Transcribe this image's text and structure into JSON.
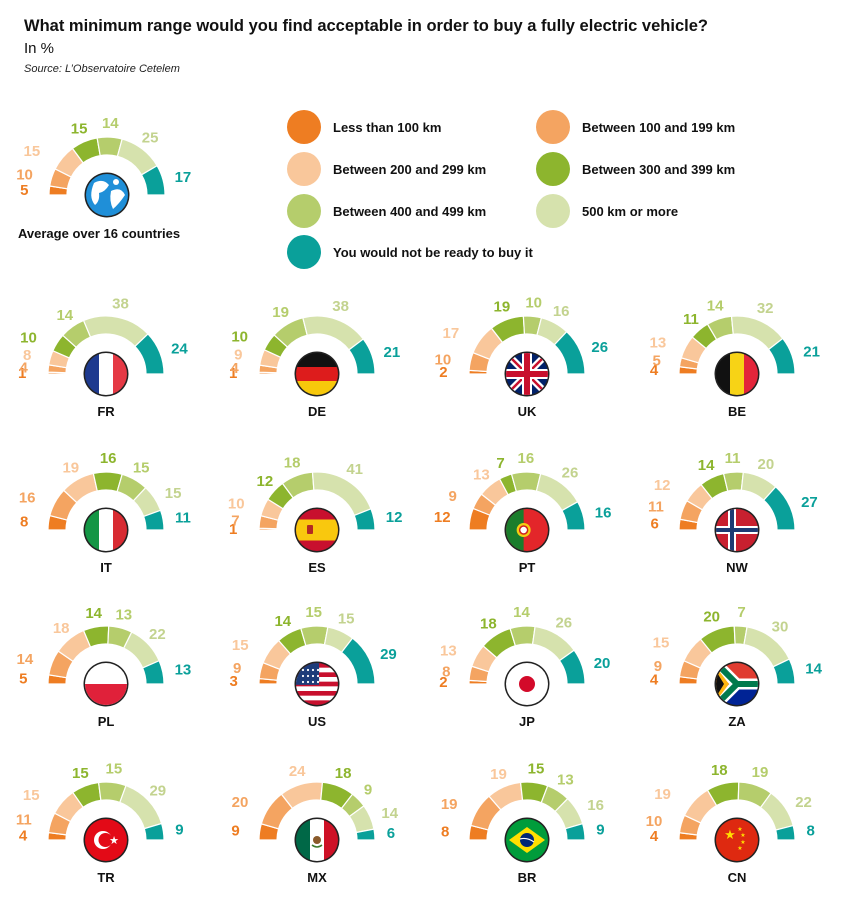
{
  "header": {
    "title": "What minimum range would you find acceptable in order to buy a fully electric vehicle?",
    "unit": "In %",
    "source": "Source: L’Observatoire Cetelem"
  },
  "legend": [
    {
      "label": "Less than 100 km",
      "color": "#ee7d22"
    },
    {
      "label": "Between 100 and 199 km",
      "color": "#f4a461"
    },
    {
      "label": "Between 200 and 299 km",
      "color": "#f9c79b"
    },
    {
      "label": "Between 300 and 399 km",
      "color": "#8db52e"
    },
    {
      "label": "Between 400 and 499 km",
      "color": "#b5cd6c"
    },
    {
      "label": "500 km or more",
      "color": "#d6e2ad"
    },
    {
      "label": "You would not be ready to buy it",
      "color": "#0aa09a"
    }
  ],
  "average_label": "Average over 16 countries",
  "chart_data": {
    "type": "semi-donut",
    "title": "What minimum range would you find acceptable in order to buy a fully electric vehicle?",
    "unit": "%",
    "categories": [
      "Less than 100 km",
      "Between 100 and 199 km",
      "Between 200 and 299 km",
      "Between 300 and 399 km",
      "Between 400 and 499 km",
      "500 km or more",
      "You would not be ready to buy it"
    ],
    "series": [
      {
        "name": "Average over 16 countries",
        "flag": "globe",
        "values": [
          5,
          10,
          15,
          15,
          14,
          25,
          17
        ]
      },
      {
        "name": "FR",
        "flag": "fr",
        "values": [
          1,
          4,
          8,
          10,
          14,
          38,
          24
        ]
      },
      {
        "name": "DE",
        "flag": "de",
        "values": [
          1,
          4,
          9,
          10,
          19,
          38,
          21
        ]
      },
      {
        "name": "UK",
        "flag": "uk",
        "values": [
          2,
          10,
          17,
          19,
          10,
          16,
          26
        ]
      },
      {
        "name": "BE",
        "flag": "be",
        "values": [
          4,
          5,
          13,
          11,
          14,
          32,
          21
        ]
      },
      {
        "name": "IT",
        "flag": "it",
        "values": [
          8,
          16,
          19,
          16,
          15,
          15,
          11
        ]
      },
      {
        "name": "ES",
        "flag": "es",
        "values": [
          1,
          7,
          10,
          12,
          18,
          41,
          12
        ]
      },
      {
        "name": "PT",
        "flag": "pt",
        "values": [
          12,
          9,
          13,
          7,
          16,
          26,
          16
        ]
      },
      {
        "name": "NW",
        "flag": "nw",
        "values": [
          6,
          11,
          12,
          14,
          11,
          20,
          27
        ]
      },
      {
        "name": "PL",
        "flag": "pl",
        "values": [
          5,
          14,
          18,
          14,
          13,
          22,
          13
        ]
      },
      {
        "name": "US",
        "flag": "us",
        "values": [
          3,
          9,
          15,
          14,
          15,
          15,
          29
        ]
      },
      {
        "name": "JP",
        "flag": "jp",
        "values": [
          2,
          8,
          13,
          18,
          14,
          26,
          20
        ]
      },
      {
        "name": "ZA",
        "flag": "za",
        "values": [
          4,
          9,
          15,
          20,
          7,
          30,
          14
        ]
      },
      {
        "name": "TR",
        "flag": "tr",
        "values": [
          4,
          11,
          15,
          15,
          15,
          29,
          9
        ]
      },
      {
        "name": "MX",
        "flag": "mx",
        "values": [
          9,
          20,
          24,
          18,
          9,
          14,
          6
        ]
      },
      {
        "name": "BR",
        "flag": "br",
        "values": [
          8,
          19,
          19,
          15,
          13,
          16,
          9
        ]
      },
      {
        "name": "CN",
        "flag": "cn",
        "values": [
          4,
          10,
          19,
          18,
          19,
          22,
          8
        ]
      }
    ]
  }
}
